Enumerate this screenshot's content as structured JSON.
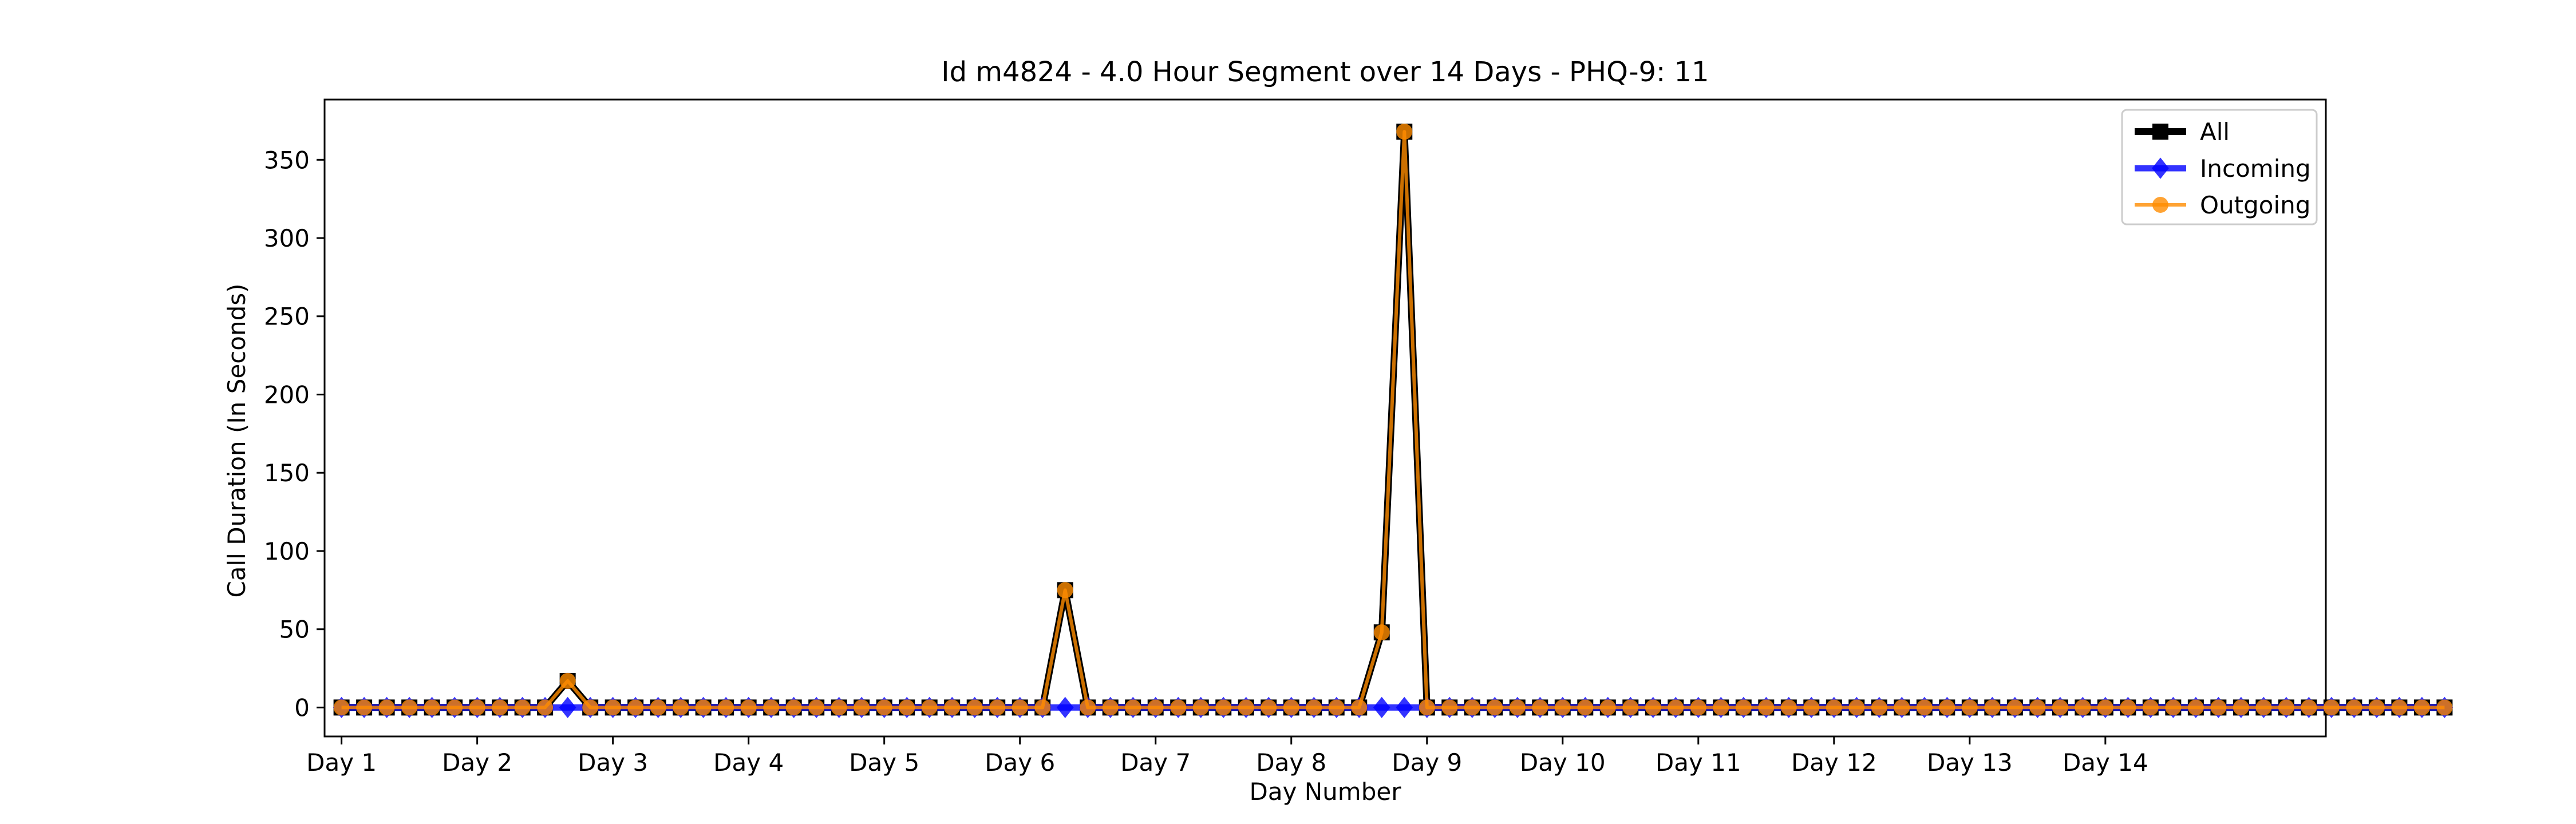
{
  "chart_data": {
    "type": "line",
    "title": "Id m4824 - 4.0 Hour Segment over 14 Days - PHQ-9: 11",
    "xlabel": "Day Number",
    "ylabel": "Call Duration (In Seconds)",
    "xlim": [
      -0.75,
      87.75
    ],
    "ylim": [
      -18.5,
      388.5
    ],
    "yticks": [
      0,
      50,
      100,
      150,
      200,
      250,
      300,
      350
    ],
    "xtick_positions": [
      0,
      6,
      12,
      18,
      24,
      30,
      36,
      42,
      48,
      54,
      60,
      66,
      72,
      78
    ],
    "xtick_labels": [
      "Day 1",
      "Day 2",
      "Day 3",
      "Day 4",
      "Day 5",
      "Day 6",
      "Day 7",
      "Day 8",
      "Day 9",
      "Day 10",
      "Day 11",
      "Day 12",
      "Day 13",
      "Day 14"
    ],
    "legend_position": "top-right",
    "series": [
      {
        "name": "All",
        "color": "#000000",
        "marker": "square",
        "values": [
          0,
          0,
          0,
          0,
          0,
          0,
          0,
          0,
          0,
          0,
          17,
          0,
          0,
          0,
          0,
          0,
          0,
          0,
          0,
          0,
          0,
          0,
          0,
          0,
          0,
          0,
          0,
          0,
          0,
          0,
          0,
          0,
          75,
          0,
          0,
          0,
          0,
          0,
          0,
          0,
          0,
          0,
          0,
          0,
          0,
          0,
          48,
          368,
          0,
          0,
          0,
          0,
          0,
          0,
          0,
          0,
          0,
          0,
          0,
          0,
          0,
          0,
          0,
          0,
          0,
          0,
          0,
          0,
          0,
          0,
          0,
          0,
          0,
          0,
          0,
          0,
          0,
          0,
          0,
          0,
          0,
          0,
          0,
          0,
          0,
          0,
          0,
          0,
          0,
          0,
          0,
          0,
          0,
          0
        ]
      },
      {
        "name": "Incoming",
        "color": "#0000ff",
        "marker": "diamond",
        "values": [
          0,
          0,
          0,
          0,
          0,
          0,
          0,
          0,
          0,
          0,
          0,
          0,
          0,
          0,
          0,
          0,
          0,
          0,
          0,
          0,
          0,
          0,
          0,
          0,
          0,
          0,
          0,
          0,
          0,
          0,
          0,
          0,
          0,
          0,
          0,
          0,
          0,
          0,
          0,
          0,
          0,
          0,
          0,
          0,
          0,
          0,
          0,
          0,
          0,
          0,
          0,
          0,
          0,
          0,
          0,
          0,
          0,
          0,
          0,
          0,
          0,
          0,
          0,
          0,
          0,
          0,
          0,
          0,
          0,
          0,
          0,
          0,
          0,
          0,
          0,
          0,
          0,
          0,
          0,
          0,
          0,
          0,
          0,
          0,
          0,
          0,
          0,
          0,
          0,
          0,
          0,
          0,
          0,
          0
        ]
      },
      {
        "name": "Outgoing",
        "color": "#ff8c00",
        "marker": "circle",
        "values": [
          0,
          0,
          0,
          0,
          0,
          0,
          0,
          0,
          0,
          0,
          17,
          0,
          0,
          0,
          0,
          0,
          0,
          0,
          0,
          0,
          0,
          0,
          0,
          0,
          0,
          0,
          0,
          0,
          0,
          0,
          0,
          0,
          75,
          0,
          0,
          0,
          0,
          0,
          0,
          0,
          0,
          0,
          0,
          0,
          0,
          0,
          48,
          368,
          0,
          0,
          0,
          0,
          0,
          0,
          0,
          0,
          0,
          0,
          0,
          0,
          0,
          0,
          0,
          0,
          0,
          0,
          0,
          0,
          0,
          0,
          0,
          0,
          0,
          0,
          0,
          0,
          0,
          0,
          0,
          0,
          0,
          0,
          0,
          0,
          0,
          0,
          0,
          0,
          0,
          0,
          0,
          0,
          0,
          0
        ]
      }
    ]
  }
}
